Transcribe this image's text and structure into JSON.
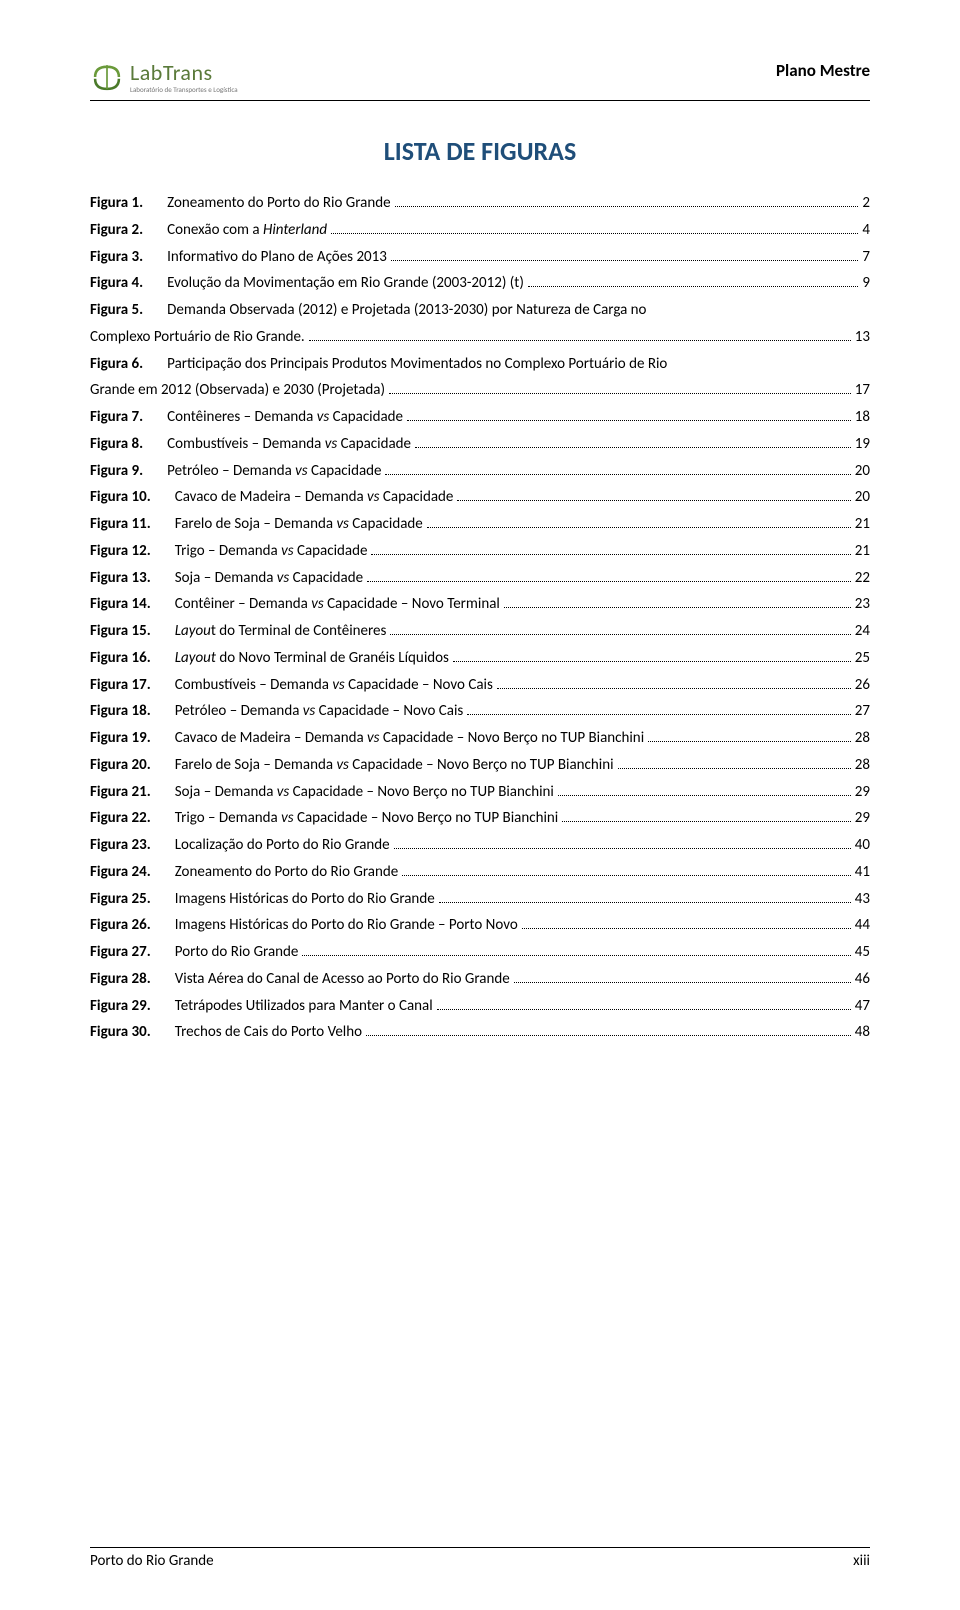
{
  "header": {
    "logo_main": "LabTrans",
    "logo_sub": "Laboratório de Transportes e Logística",
    "doc_title": "Plano Mestre"
  },
  "section_title": "LISTA DE FIGURAS",
  "entries": [
    {
      "label": "Figura 1.",
      "bold": true,
      "desc": "Zoneamento do Porto do Rio Grande",
      "page": "2",
      "cont": false
    },
    {
      "label": "Figura 2.",
      "bold": true,
      "desc": "Conexão com a Hinterland",
      "desc_suffix": "",
      "page": "4",
      "cont": false,
      "italic_word": "Hinterland"
    },
    {
      "label": "Figura 3.",
      "bold": true,
      "desc": "Informativo do Plano de Ações 2013",
      "page": "7",
      "cont": false
    },
    {
      "label": "Figura 4.",
      "bold": true,
      "desc": "Evolução da Movimentação em Rio Grande (2003-2012) (t)",
      "page": "9",
      "cont": false
    },
    {
      "label": "Figura 5.",
      "bold": true,
      "desc": "Demanda Observada (2012) e Projetada (2013-2030) por Natureza de Carga no",
      "page": null,
      "cont": false
    },
    {
      "label": "",
      "bold": false,
      "desc": "Complexo Portuário de Rio Grande.",
      "page": "13",
      "cont": true
    },
    {
      "label": "Figura 6.",
      "bold": true,
      "desc": "Participação dos Principais Produtos Movimentados no Complexo Portuário de Rio",
      "page": null,
      "cont": false
    },
    {
      "label": "",
      "bold": false,
      "desc": "Grande em 2012 (Observada) e 2030 (Projetada)",
      "page": "17",
      "cont": true
    },
    {
      "label": "Figura 7.",
      "bold": true,
      "desc": "Contêineres – Demanda vs Capacidade",
      "page": "18",
      "cont": false,
      "italic_word": "vs"
    },
    {
      "label": "Figura 8.",
      "bold": true,
      "desc": "Combustíveis – Demanda vs Capacidade",
      "page": "19",
      "cont": false,
      "italic_word": "vs"
    },
    {
      "label": "Figura 9.",
      "bold": true,
      "desc": "Petróleo – Demanda vs Capacidade",
      "page": "20",
      "cont": false,
      "italic_word": "vs"
    },
    {
      "label": "Figura 10.",
      "bold": true,
      "desc": "Cavaco de Madeira – Demanda vs Capacidade",
      "page": "20",
      "cont": false,
      "italic_word": "vs"
    },
    {
      "label": "Figura 11.",
      "bold": true,
      "desc": "Farelo de Soja – Demanda vs Capacidade",
      "page": "21",
      "cont": false,
      "italic_word": "vs"
    },
    {
      "label": "Figura 12.",
      "bold": true,
      "desc": "Trigo – Demanda vs Capacidade",
      "page": "21",
      "cont": false,
      "italic_word": "vs"
    },
    {
      "label": "Figura 13.",
      "bold": true,
      "desc": "Soja – Demanda vs Capacidade",
      "page": "22",
      "cont": false,
      "italic_word": "vs"
    },
    {
      "label": "Figura 14.",
      "bold": true,
      "desc": "Contêiner – Demanda vs Capacidade – Novo Terminal",
      "page": "23",
      "cont": false,
      "italic_word": "vs"
    },
    {
      "label": "Figura 15.",
      "bold": true,
      "desc": "Layout do Terminal de Contêineres",
      "page": "24",
      "cont": false,
      "italic_part": "Layou"
    },
    {
      "label": "Figura 16.",
      "bold": true,
      "desc": "Layout do Novo Terminal de Granéis Líquidos",
      "page": "25",
      "cont": false,
      "italic_word": "Layout"
    },
    {
      "label": "Figura 17.",
      "bold": true,
      "desc": "Combustíveis – Demanda vs Capacidade – Novo Cais",
      "page": "26",
      "cont": false,
      "italic_word": "vs"
    },
    {
      "label": "Figura 18.",
      "bold": true,
      "desc": "Petróleo – Demanda vs Capacidade – Novo Cais",
      "page": "27",
      "cont": false,
      "italic_word": "vs"
    },
    {
      "label": "Figura 19.",
      "bold": true,
      "desc": "Cavaco de Madeira – Demanda vs Capacidade – Novo Berço no TUP Bianchini",
      "page": "28",
      "cont": false,
      "italic_word": "vs"
    },
    {
      "label": "Figura 20.",
      "bold": true,
      "desc": "Farelo de Soja – Demanda vs Capacidade – Novo Berço no TUP Bianchini",
      "page": "28",
      "cont": false,
      "italic_word": "vs"
    },
    {
      "label": "Figura 21.",
      "bold": true,
      "desc": "Soja – Demanda vs Capacidade – Novo Berço no TUP Bianchini",
      "page": "29",
      "cont": false,
      "italic_word": "vs"
    },
    {
      "label": "Figura 22.",
      "bold": true,
      "desc": "Trigo – Demanda vs Capacidade – Novo Berço no TUP Bianchini",
      "page": "29",
      "cont": false,
      "italic_word": "vs"
    },
    {
      "label": "Figura 23.",
      "bold": true,
      "desc": "Localização do Porto do Rio Grande",
      "page": "40",
      "cont": false
    },
    {
      "label": "Figura 24.",
      "bold": true,
      "desc": "Zoneamento do Porto do Rio Grande",
      "page": "41",
      "cont": false
    },
    {
      "label": "Figura 25.",
      "bold": true,
      "desc": "Imagens Históricas do Porto do Rio Grande",
      "page": "43",
      "cont": false
    },
    {
      "label": "Figura 26.",
      "bold": true,
      "desc": "Imagens Históricas do Porto do Rio Grande – Porto Novo",
      "page": "44",
      "cont": false
    },
    {
      "label": "Figura 27.",
      "bold": true,
      "desc": "Porto do Rio Grande",
      "page": "45",
      "cont": false
    },
    {
      "label": "Figura 28.",
      "bold": true,
      "desc": "Vista Aérea do Canal de Acesso ao Porto do Rio Grande",
      "page": "46",
      "cont": false
    },
    {
      "label": "Figura 29.",
      "bold": true,
      "desc": "Tetrápodes Utilizados para Manter o Canal",
      "page": "47",
      "cont": false
    },
    {
      "label": "Figura 30.",
      "bold": true,
      "desc": "Trechos de Cais do Porto Velho",
      "page": "48",
      "cont": false
    }
  ],
  "footer": {
    "left": "Porto do Rio Grande",
    "right": "xiii"
  }
}
